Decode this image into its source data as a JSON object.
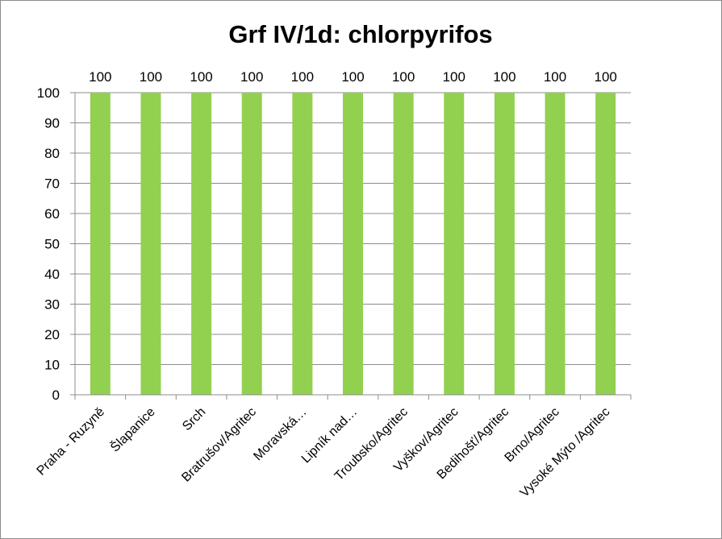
{
  "chart_data": {
    "type": "bar",
    "title": "Grf IV/1d: chlorpyrifos",
    "categories": [
      "Praha - Ruzyně",
      "Šlapanice",
      "Srch",
      "Bratrušov/Agritec",
      "Moravská…",
      "Lipník nad…",
      "Troubsko/Agritec",
      "Vyškov/Agritec",
      "Bedihošť/Agritec",
      "Brno/Agritec",
      "Vysoké Mýto /Agritec"
    ],
    "series": [
      {
        "values": [
          100,
          100,
          100,
          100,
          100,
          100,
          100,
          100,
          100,
          100,
          100
        ]
      }
    ],
    "data_labels": [
      "100",
      "100",
      "100",
      "100",
      "100",
      "100",
      "100",
      "100",
      "100",
      "100",
      "100"
    ],
    "ylim": [
      0,
      100
    ],
    "yticks": [
      0,
      10,
      20,
      30,
      40,
      50,
      60,
      70,
      80,
      90,
      100
    ],
    "grid": true,
    "legend": "none",
    "colors": {
      "bar": "#92d050",
      "grid": "#8c8c8c",
      "axis": "#8c8c8c",
      "border": "#8c8c8c"
    }
  }
}
